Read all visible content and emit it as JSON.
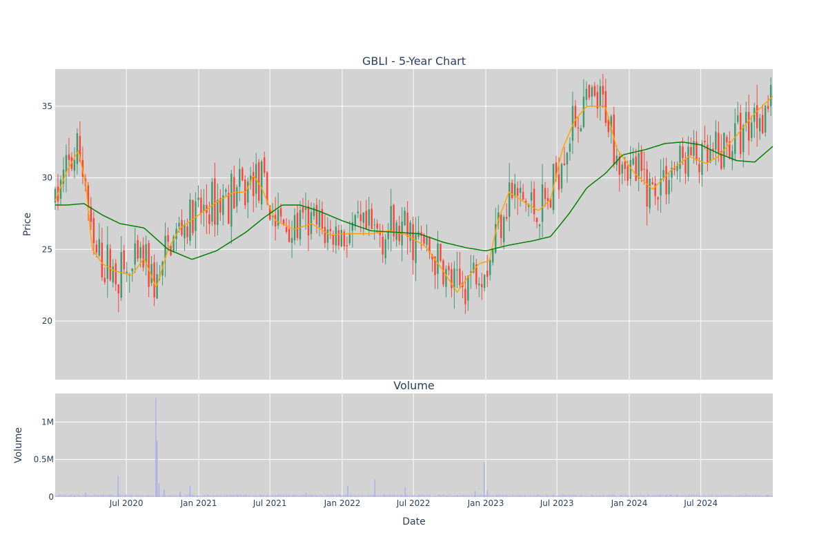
{
  "chart_data": [
    {
      "type": "candlestick",
      "title": "GBLI - 5-Year Chart",
      "ylabel": "Price",
      "ylim": [
        15.9,
        37.6
      ],
      "yticks": [
        20,
        25,
        30,
        35
      ],
      "grid": true,
      "up_color": "#3d9970",
      "down_color": "#ff4136",
      "background": "#d3d3d3",
      "overlays": [
        {
          "kind": "short moving average",
          "color": "#ffa500",
          "points": [
            [
              "2020-01-02",
              28.4
            ],
            [
              "2020-02-01",
              30.5
            ],
            [
              "2020-03-01",
              31.9
            ],
            [
              "2020-03-20",
              29.5
            ],
            [
              "2020-04-05",
              25.0
            ],
            [
              "2020-05-01",
              24.0
            ],
            [
              "2020-06-01",
              23.5
            ],
            [
              "2020-07-15",
              23.2
            ],
            [
              "2020-08-15",
              24.4
            ],
            [
              "2020-09-15",
              22.3
            ],
            [
              "2020-10-15",
              25.0
            ],
            [
              "2020-11-15",
              26.5
            ],
            [
              "2021-01-01",
              27.4
            ],
            [
              "2021-02-15",
              28.3
            ],
            [
              "2021-04-01",
              29.0
            ],
            [
              "2021-05-01",
              29.0
            ],
            [
              "2021-05-20",
              30.2
            ],
            [
              "2021-06-10",
              29.3
            ],
            [
              "2021-07-15",
              27.0
            ],
            [
              "2021-09-01",
              26.4
            ],
            [
              "2021-10-15",
              26.8
            ],
            [
              "2021-12-01",
              26.0
            ],
            [
              "2022-01-15",
              26.1
            ],
            [
              "2022-03-15",
              26.1
            ],
            [
              "2022-05-01",
              26.3
            ],
            [
              "2022-06-15",
              26.0
            ],
            [
              "2022-08-01",
              25.2
            ],
            [
              "2022-09-15",
              23.5
            ],
            [
              "2022-10-20",
              22.0
            ],
            [
              "2022-11-15",
              23.0
            ],
            [
              "2022-12-15",
              24.0
            ],
            [
              "2023-01-10",
              24.2
            ],
            [
              "2023-02-01",
              27.0
            ],
            [
              "2023-03-01",
              29.0
            ],
            [
              "2023-04-15",
              28.2
            ],
            [
              "2023-05-15",
              27.7
            ],
            [
              "2023-06-15",
              28.5
            ],
            [
              "2023-07-15",
              32.0
            ],
            [
              "2023-08-15",
              34.0
            ],
            [
              "2023-09-15",
              35.0
            ],
            [
              "2023-11-01",
              35.0
            ],
            [
              "2023-12-01",
              32.0
            ],
            [
              "2024-01-15",
              30.3
            ],
            [
              "2024-03-01",
              29.2
            ],
            [
              "2024-04-15",
              30.5
            ],
            [
              "2024-06-01",
              31.5
            ],
            [
              "2024-07-15",
              31.0
            ],
            [
              "2024-08-15",
              31.5
            ],
            [
              "2024-10-01",
              33.0
            ],
            [
              "2024-11-15",
              34.5
            ],
            [
              "2024-12-31",
              35.7
            ]
          ]
        },
        {
          "kind": "long moving average",
          "color": "#008000",
          "points": [
            [
              "2020-01-02",
              28.1
            ],
            [
              "2020-02-01",
              28.1
            ],
            [
              "2020-03-15",
              28.2
            ],
            [
              "2020-05-01",
              27.4
            ],
            [
              "2020-06-15",
              26.8
            ],
            [
              "2020-08-15",
              26.5
            ],
            [
              "2020-10-15",
              25.0
            ],
            [
              "2020-12-15",
              24.3
            ],
            [
              "2021-02-15",
              24.9
            ],
            [
              "2021-05-01",
              26.2
            ],
            [
              "2021-06-15",
              27.2
            ],
            [
              "2021-08-01",
              28.1
            ],
            [
              "2021-09-15",
              28.1
            ],
            [
              "2021-11-01",
              27.7
            ],
            [
              "2022-01-01",
              27.0
            ],
            [
              "2022-03-15",
              26.3
            ],
            [
              "2022-05-15",
              26.2
            ],
            [
              "2022-07-15",
              26.1
            ],
            [
              "2022-09-15",
              25.5
            ],
            [
              "2022-11-15",
              25.1
            ],
            [
              "2023-01-01",
              24.9
            ],
            [
              "2023-03-01",
              25.3
            ],
            [
              "2023-05-01",
              25.6
            ],
            [
              "2023-06-15",
              25.9
            ],
            [
              "2023-08-01",
              27.5
            ],
            [
              "2023-09-15",
              29.3
            ],
            [
              "2023-11-01",
              30.3
            ],
            [
              "2023-12-15",
              31.6
            ],
            [
              "2024-02-15",
              32.0
            ],
            [
              "2024-04-01",
              32.4
            ],
            [
              "2024-05-15",
              32.5
            ],
            [
              "2024-07-01",
              32.3
            ],
            [
              "2024-08-15",
              31.7
            ],
            [
              "2024-10-01",
              31.2
            ],
            [
              "2024-11-15",
              31.1
            ],
            [
              "2024-12-31",
              32.2
            ]
          ]
        }
      ]
    },
    {
      "type": "bar",
      "title": "Volume",
      "xlabel": "Date",
      "ylabel": "Volume",
      "ylim": [
        0,
        1380000
      ],
      "yticks": [
        {
          "value": 0,
          "label": "0"
        },
        {
          "value": 500000,
          "label": "0.5M"
        },
        {
          "value": 1000000,
          "label": "1M"
        }
      ],
      "xlim": [
        "2020-01-02",
        "2024-12-31"
      ],
      "xticks": [
        {
          "date": "2020-07-01",
          "label": "Jul 2020"
        },
        {
          "date": "2021-01-01",
          "label": "Jan 2021"
        },
        {
          "date": "2021-07-01",
          "label": "Jul 2021"
        },
        {
          "date": "2022-01-01",
          "label": "Jan 2022"
        },
        {
          "date": "2022-07-01",
          "label": "Jul 2022"
        },
        {
          "date": "2023-01-01",
          "label": "Jan 2023"
        },
        {
          "date": "2023-07-01",
          "label": "Jul 2023"
        },
        {
          "date": "2024-01-01",
          "label": "Jan 2024"
        },
        {
          "date": "2024-07-01",
          "label": "Jul 2024"
        }
      ],
      "bar_color": "#b0b0e8",
      "background": "#d3d3d3",
      "spikes": [
        [
          "2020-03-19",
          60000
        ],
        [
          "2020-06-10",
          280000
        ],
        [
          "2020-09-14",
          1320000
        ],
        [
          "2020-09-17",
          750000
        ],
        [
          "2020-09-22",
          180000
        ],
        [
          "2020-10-05",
          100000
        ],
        [
          "2020-11-15",
          70000
        ],
        [
          "2020-12-10",
          150000
        ],
        [
          "2021-10-01",
          50000
        ],
        [
          "2022-01-15",
          150000
        ],
        [
          "2022-03-25",
          230000
        ],
        [
          "2022-06-10",
          130000
        ],
        [
          "2022-12-05",
          80000
        ],
        [
          "2022-12-28",
          460000
        ],
        [
          "2023-01-05",
          90000
        ]
      ],
      "baseline": 25000
    }
  ]
}
